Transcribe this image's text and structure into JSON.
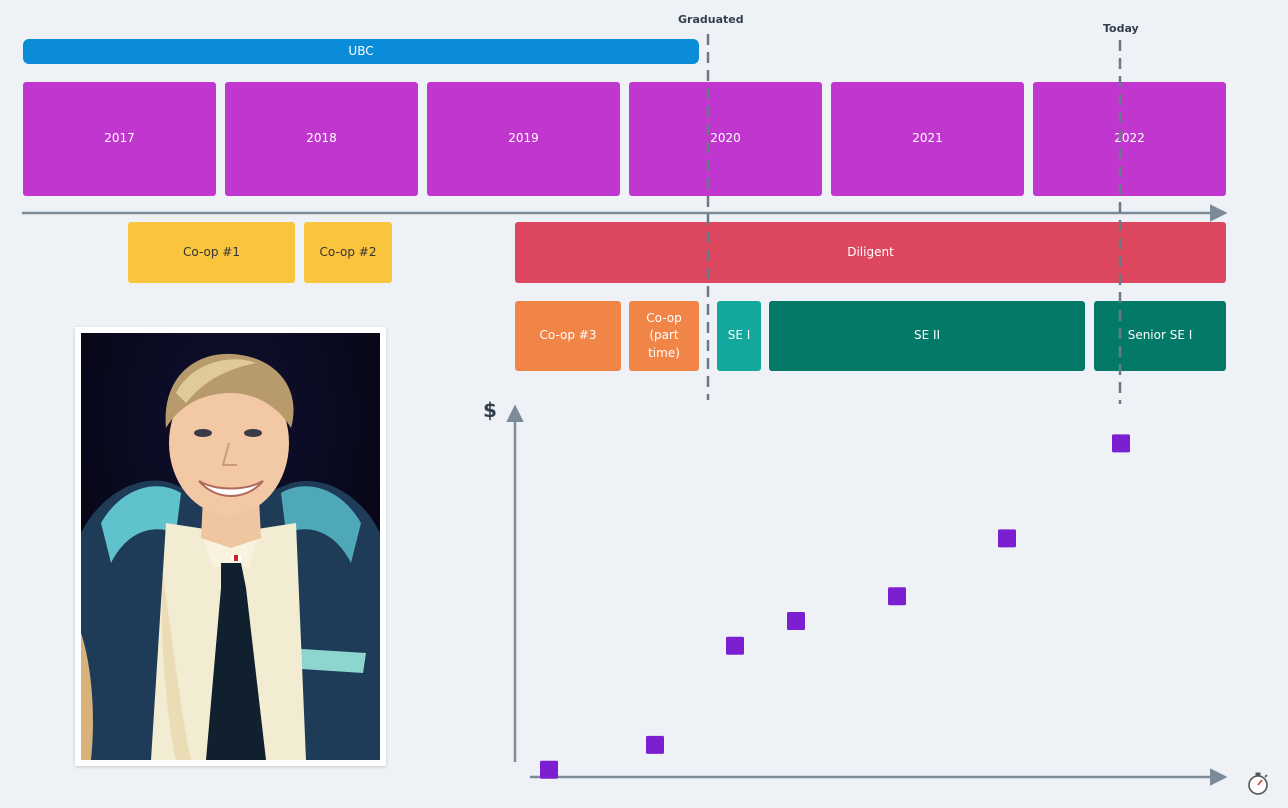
{
  "markers": {
    "graduated": "Graduated",
    "today": "Today"
  },
  "education": {
    "ubc": "UBC"
  },
  "years": [
    "2017",
    "2018",
    "2019",
    "2020",
    "2021",
    "2022"
  ],
  "jobs": {
    "coop1": "Co-op #1",
    "coop2": "Co-op #2",
    "diligent": "Diligent",
    "coop3": "Co-op #3",
    "coop_part_time": "Co-op\n(part\ntime)",
    "se1": "SE I",
    "se2": "SE II",
    "senior_se1": "Senior SE I"
  },
  "chart": {
    "y_axis_symbol": "$",
    "x_axis_icon": "stopwatch-icon",
    "point_color": "#7b1fd1"
  },
  "photo": {
    "description_icon": "profile-photo"
  },
  "colors": {
    "background": "#eef2f7",
    "axis": "#7d8b99",
    "year_box": "#c236d0",
    "ubc_bar": "#0a8cd8",
    "coop_yellow": "#fbc43d",
    "diligent_red": "#de4760",
    "coop_orange": "#f18447",
    "se_teal": "#12a89e",
    "se_green": "#037a68"
  },
  "chart_data": {
    "type": "scatter",
    "title": "",
    "xlabel": "",
    "ylabel": "$",
    "series": [
      {
        "values": [
          {
            "x": 1,
            "y": 1
          },
          {
            "x": 2,
            "y": 1.6
          },
          {
            "x": 3,
            "y": 4
          },
          {
            "x": 4,
            "y": 4.6
          },
          {
            "x": 5,
            "y": 5.2
          },
          {
            "x": 6,
            "y": 6.6
          },
          {
            "x": 7,
            "y": 8.9
          }
        ]
      }
    ]
  }
}
